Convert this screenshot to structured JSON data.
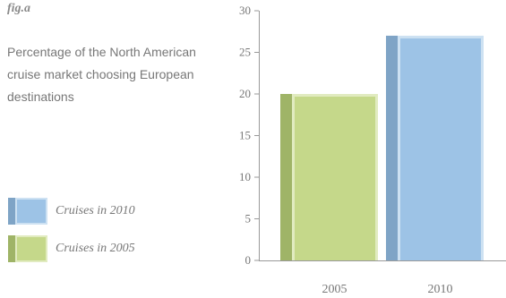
{
  "fig_label": "fig.a",
  "title": "Percentage of the North American cruise market choosing European destinations",
  "legend": [
    {
      "label": "Cruises in 2010",
      "color_face": "#9dc3e6",
      "color_side": "#7fa4c6",
      "color_edge": "#cde1f2"
    },
    {
      "label": "Cruises in 2005",
      "color_face": "#c5d88a",
      "color_side": "#9fb467",
      "color_edge": "#e1ebc0"
    }
  ],
  "chart_data": {
    "type": "bar",
    "categories": [
      "2005",
      "2010"
    ],
    "values": [
      20,
      27
    ],
    "title": "Percentage of the North American cruise market choosing European destinations",
    "xlabel": "",
    "ylabel": "",
    "ylim": [
      0,
      30
    ],
    "yticks": [
      0,
      5,
      10,
      15,
      20,
      25,
      30
    ],
    "grid": false,
    "legend_position": "left",
    "colors": [
      "#c5d88a",
      "#9dc3e6"
    ],
    "side_colors": [
      "#9fb467",
      "#7fa4c6"
    ],
    "edge_colors": [
      "#e1ebc0",
      "#cde1f2"
    ]
  }
}
